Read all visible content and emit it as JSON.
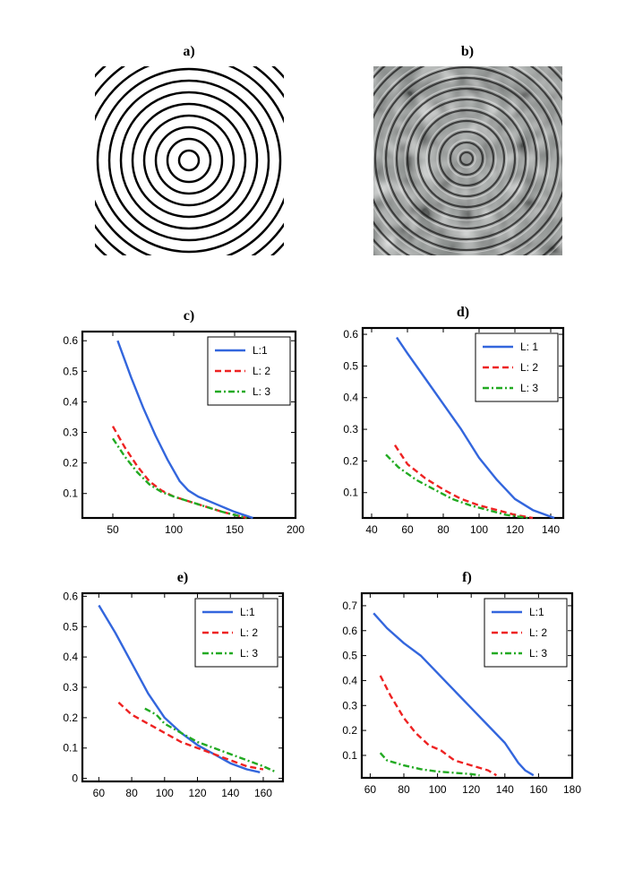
{
  "images": [
    {
      "title": "a)",
      "description": "concentric black rings on white"
    },
    {
      "title": "b)",
      "description": "noisy grayscale concentric rings"
    }
  ],
  "colors": {
    "L1": "#3366dd",
    "L2": "#ee2222",
    "L3": "#22aa22"
  },
  "chart_data": [
    {
      "type": "line",
      "title": "c)",
      "xlim": [
        25,
        200
      ],
      "ylim": [
        0.02,
        0.63
      ],
      "xticks": [
        50,
        100,
        150,
        200
      ],
      "yticks": [
        0.1,
        0.2,
        0.3,
        0.4,
        0.5,
        0.6
      ],
      "grid": false,
      "legend": "top-right",
      "series": [
        {
          "name": "L:1",
          "style": "solid",
          "x": [
            54,
            65,
            75,
            85,
            95,
            105,
            112,
            120,
            135,
            150,
            165
          ],
          "y": [
            0.6,
            0.48,
            0.38,
            0.29,
            0.21,
            0.14,
            0.11,
            0.09,
            0.065,
            0.04,
            0.02
          ]
        },
        {
          "name": "L: 2",
          "style": "dashed",
          "x": [
            50,
            60,
            70,
            80,
            90,
            100,
            120,
            140,
            160
          ],
          "y": [
            0.32,
            0.25,
            0.19,
            0.14,
            0.11,
            0.09,
            0.065,
            0.04,
            0.02
          ]
        },
        {
          "name": "L: 3",
          "style": "dashdot",
          "x": [
            50,
            60,
            70,
            80,
            90,
            100,
            120,
            140,
            160
          ],
          "y": [
            0.28,
            0.22,
            0.17,
            0.13,
            0.105,
            0.09,
            0.065,
            0.04,
            0.02
          ]
        }
      ]
    },
    {
      "type": "line",
      "title": "d)",
      "xlim": [
        35,
        147
      ],
      "ylim": [
        0.02,
        0.62
      ],
      "xticks": [
        40,
        60,
        80,
        100,
        120,
        140
      ],
      "yticks": [
        0.1,
        0.2,
        0.3,
        0.4,
        0.5,
        0.6
      ],
      "grid": false,
      "legend": "top-right",
      "series": [
        {
          "name": "L: 1",
          "style": "solid",
          "x": [
            54,
            60,
            70,
            80,
            90,
            100,
            110,
            120,
            130,
            142
          ],
          "y": [
            0.59,
            0.54,
            0.46,
            0.38,
            0.3,
            0.21,
            0.14,
            0.08,
            0.045,
            0.02
          ]
        },
        {
          "name": "L: 2",
          "style": "dashed",
          "x": [
            53,
            60,
            70,
            80,
            90,
            100,
            110,
            120,
            130
          ],
          "y": [
            0.25,
            0.19,
            0.145,
            0.11,
            0.08,
            0.06,
            0.045,
            0.03,
            0.02
          ]
        },
        {
          "name": "L: 3",
          "style": "dashdot",
          "x": [
            48,
            55,
            65,
            75,
            85,
            95,
            105,
            115,
            127
          ],
          "y": [
            0.22,
            0.18,
            0.14,
            0.11,
            0.08,
            0.06,
            0.045,
            0.03,
            0.02
          ]
        }
      ]
    },
    {
      "type": "line",
      "title": "e)",
      "xlim": [
        50,
        172
      ],
      "ylim": [
        -0.01,
        0.61
      ],
      "xticks": [
        60,
        80,
        100,
        120,
        140,
        160
      ],
      "yticks": [
        0,
        0.1,
        0.2,
        0.3,
        0.4,
        0.5,
        0.6
      ],
      "grid": false,
      "legend": "top-right",
      "series": [
        {
          "name": "L:1",
          "style": "solid",
          "x": [
            60,
            70,
            80,
            90,
            100,
            110,
            120,
            130,
            140,
            150,
            158
          ],
          "y": [
            0.57,
            0.48,
            0.38,
            0.28,
            0.2,
            0.15,
            0.11,
            0.08,
            0.05,
            0.03,
            0.02
          ]
        },
        {
          "name": "L: 2",
          "style": "dashed",
          "x": [
            72,
            80,
            90,
            100,
            110,
            120,
            130,
            140,
            150,
            160
          ],
          "y": [
            0.25,
            0.21,
            0.18,
            0.15,
            0.12,
            0.1,
            0.08,
            0.06,
            0.04,
            0.03
          ]
        },
        {
          "name": "L: 3",
          "style": "dashdot",
          "x": [
            88,
            95,
            100,
            110,
            120,
            130,
            140,
            150,
            160,
            168
          ],
          "y": [
            0.23,
            0.21,
            0.18,
            0.15,
            0.12,
            0.1,
            0.08,
            0.06,
            0.04,
            0.02
          ]
        }
      ]
    },
    {
      "type": "line",
      "title": "f)",
      "xlim": [
        55,
        180
      ],
      "ylim": [
        0.01,
        0.75
      ],
      "xticks": [
        60,
        80,
        100,
        120,
        140,
        160,
        180
      ],
      "yticks": [
        0.1,
        0.2,
        0.3,
        0.4,
        0.5,
        0.6,
        0.7
      ],
      "grid": false,
      "legend": "top-right",
      "series": [
        {
          "name": "L:1",
          "style": "solid",
          "x": [
            62,
            70,
            80,
            90,
            100,
            110,
            120,
            130,
            140,
            145,
            148,
            152,
            157
          ],
          "y": [
            0.67,
            0.61,
            0.55,
            0.5,
            0.43,
            0.36,
            0.29,
            0.22,
            0.15,
            0.1,
            0.07,
            0.04,
            0.02
          ]
        },
        {
          "name": "L: 2",
          "style": "dashed",
          "x": [
            66,
            72,
            80,
            87,
            95,
            102,
            110,
            120,
            130,
            135
          ],
          "y": [
            0.42,
            0.34,
            0.25,
            0.19,
            0.14,
            0.12,
            0.08,
            0.06,
            0.04,
            0.02
          ]
        },
        {
          "name": "L: 3",
          "style": "dashdot",
          "x": [
            66,
            70,
            80,
            90,
            100,
            110,
            120,
            125
          ],
          "y": [
            0.11,
            0.08,
            0.06,
            0.045,
            0.035,
            0.03,
            0.025,
            0.02
          ]
        }
      ]
    }
  ]
}
